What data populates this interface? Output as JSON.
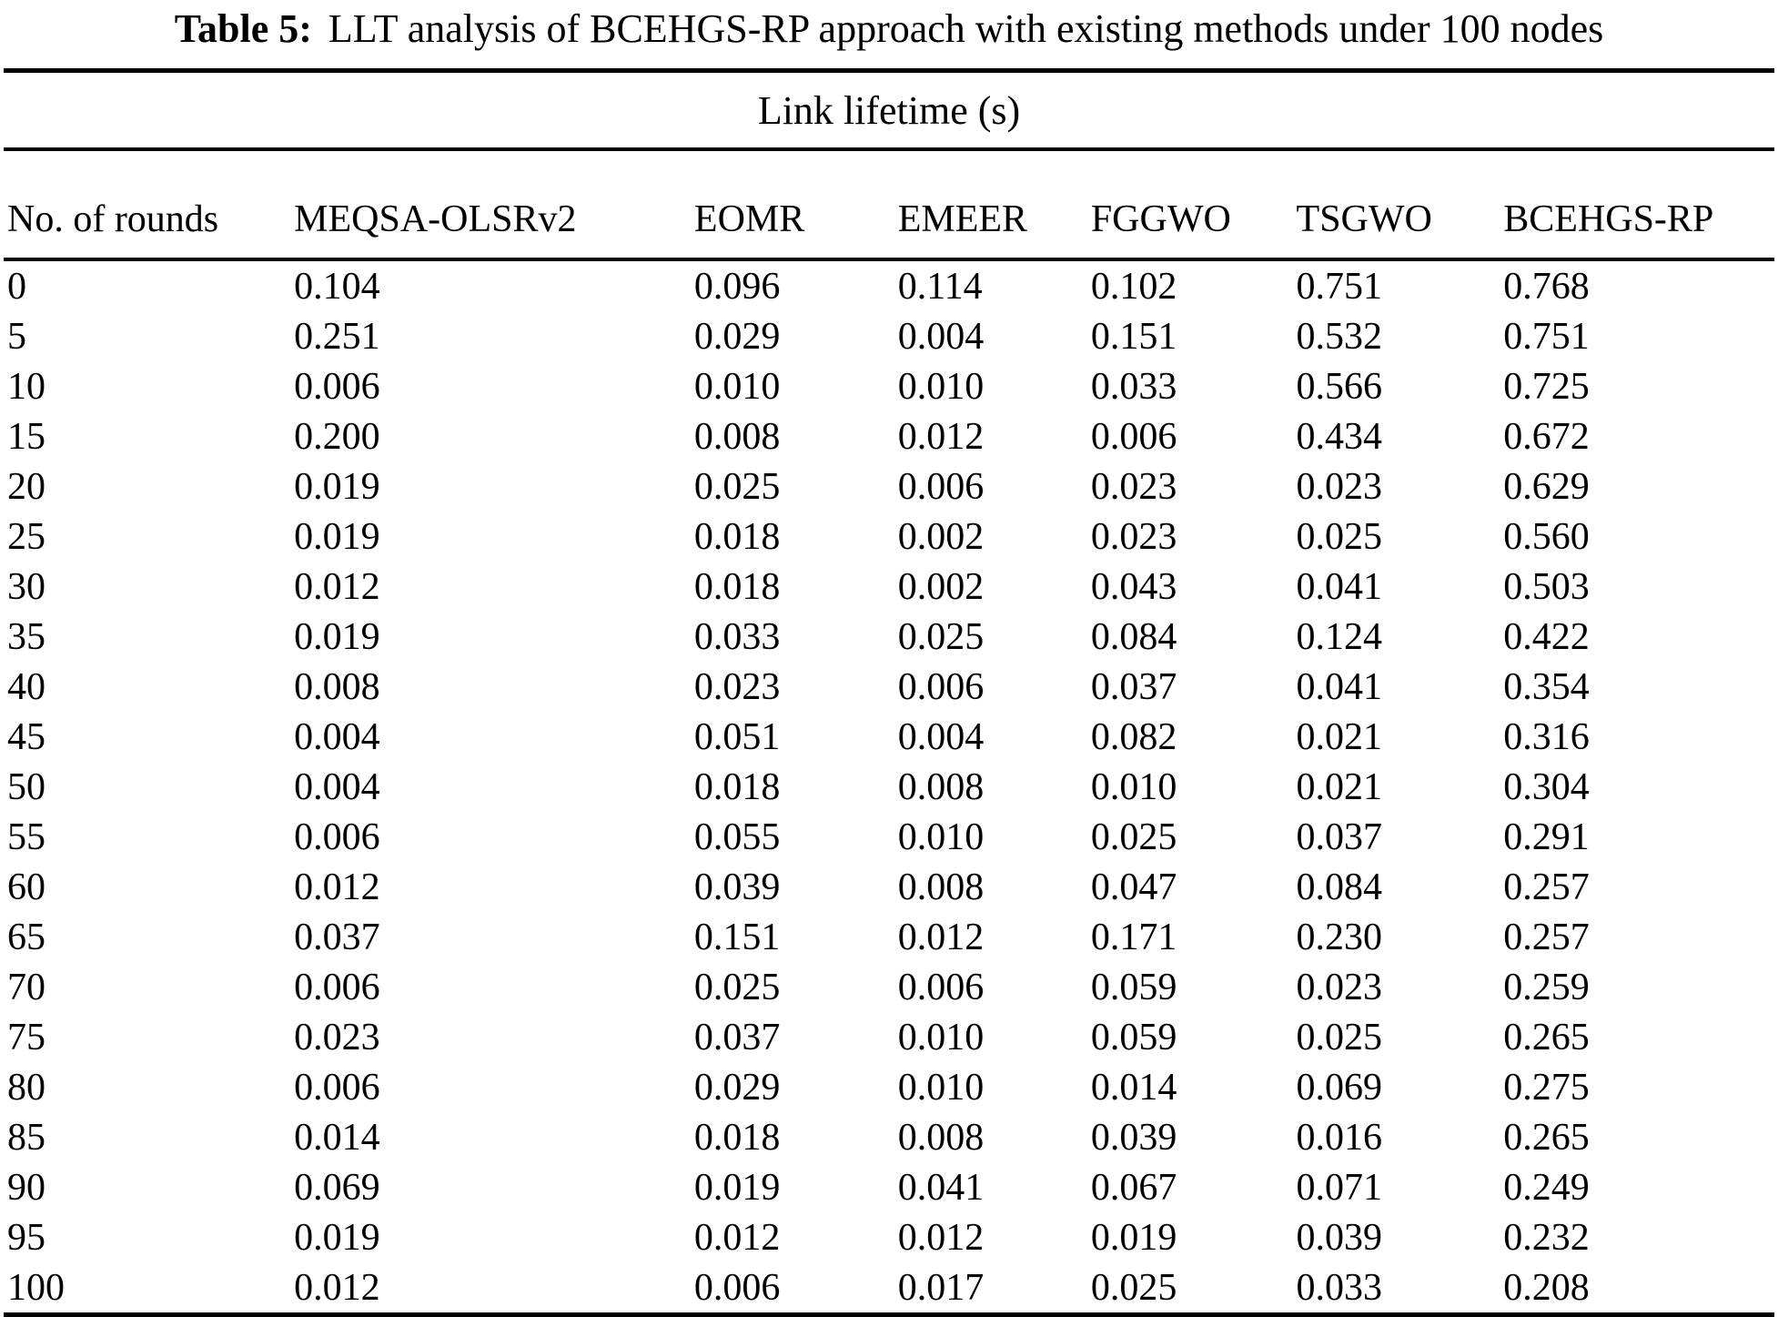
{
  "table": {
    "caption_label": "Table 5:",
    "caption_text": "LLT analysis of BCEHGS-RP approach with existing methods under 100 nodes",
    "span_header": "Link lifetime (s)",
    "columns": [
      "No. of rounds",
      "MEQSA-OLSRv2",
      "EOMR",
      "EMEER",
      "FGGWO",
      "TSGWO",
      "BCEHGS-RP"
    ],
    "rows": [
      [
        "0",
        "0.104",
        "0.096",
        "0.114",
        "0.102",
        "0.751",
        "0.768"
      ],
      [
        "5",
        "0.251",
        "0.029",
        "0.004",
        "0.151",
        "0.532",
        "0.751"
      ],
      [
        "10",
        "0.006",
        "0.010",
        "0.010",
        "0.033",
        "0.566",
        "0.725"
      ],
      [
        "15",
        "0.200",
        "0.008",
        "0.012",
        "0.006",
        "0.434",
        "0.672"
      ],
      [
        "20",
        "0.019",
        "0.025",
        "0.006",
        "0.023",
        "0.023",
        "0.629"
      ],
      [
        "25",
        "0.019",
        "0.018",
        "0.002",
        "0.023",
        "0.025",
        "0.560"
      ],
      [
        "30",
        "0.012",
        "0.018",
        "0.002",
        "0.043",
        "0.041",
        "0.503"
      ],
      [
        "35",
        "0.019",
        "0.033",
        "0.025",
        "0.084",
        "0.124",
        "0.422"
      ],
      [
        "40",
        "0.008",
        "0.023",
        "0.006",
        "0.037",
        "0.041",
        "0.354"
      ],
      [
        "45",
        "0.004",
        "0.051",
        "0.004",
        "0.082",
        "0.021",
        "0.316"
      ],
      [
        "50",
        "0.004",
        "0.018",
        "0.008",
        "0.010",
        "0.021",
        "0.304"
      ],
      [
        "55",
        "0.006",
        "0.055",
        "0.010",
        "0.025",
        "0.037",
        "0.291"
      ],
      [
        "60",
        "0.012",
        "0.039",
        "0.008",
        "0.047",
        "0.084",
        "0.257"
      ],
      [
        "65",
        "0.037",
        "0.151",
        "0.012",
        "0.171",
        "0.230",
        "0.257"
      ],
      [
        "70",
        "0.006",
        "0.025",
        "0.006",
        "0.059",
        "0.023",
        "0.259"
      ],
      [
        "75",
        "0.023",
        "0.037",
        "0.010",
        "0.059",
        "0.025",
        "0.265"
      ],
      [
        "80",
        "0.006",
        "0.029",
        "0.010",
        "0.014",
        "0.069",
        "0.275"
      ],
      [
        "85",
        "0.014",
        "0.018",
        "0.008",
        "0.039",
        "0.016",
        "0.265"
      ],
      [
        "90",
        "0.069",
        "0.019",
        "0.041",
        "0.067",
        "0.071",
        "0.249"
      ],
      [
        "95",
        "0.019",
        "0.012",
        "0.012",
        "0.019",
        "0.039",
        "0.232"
      ],
      [
        "100",
        "0.012",
        "0.006",
        "0.017",
        "0.025",
        "0.033",
        "0.208"
      ]
    ],
    "column_widths_pct": [
      16.4,
      22.6,
      11.5,
      10.9,
      11.6,
      11.7,
      15.3
    ]
  }
}
